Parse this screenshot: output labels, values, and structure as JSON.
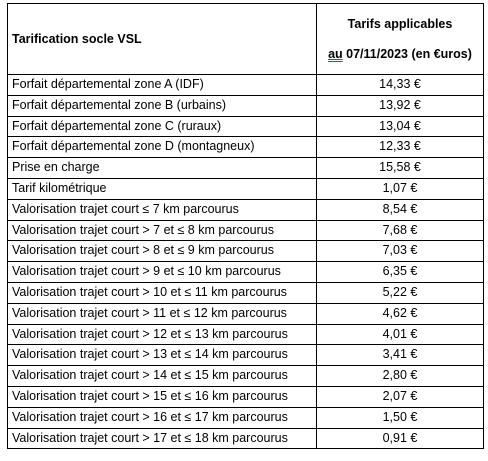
{
  "table": {
    "header": {
      "title": "Tarification socle VSL",
      "tarifs": "Tarifs applicables",
      "date_prefix": "au",
      "date": "07/11/2023 (en €uros)"
    },
    "rows": [
      [
        "Forfait départemental zone A (IDF)",
        "14,33 €"
      ],
      [
        "Forfait départemental zone B (urbains)",
        "13,92 €"
      ],
      [
        "Forfait départemental zone C (ruraux)",
        "13,04 €"
      ],
      [
        "Forfait départemental zone D (montagneux)",
        "12,33 €"
      ],
      [
        "Prise en charge",
        "15,58 €"
      ],
      [
        "Tarif kilométrique",
        "1,07 €"
      ],
      [
        "Valorisation trajet court ≤ 7 km parcourus",
        "8,54 €"
      ],
      [
        "Valorisation trajet court > 7 et ≤ 8 km parcourus",
        "7,68 €"
      ],
      [
        "Valorisation trajet court > 8 et ≤ 9 km parcourus",
        "7,03 €"
      ],
      [
        "Valorisation trajet court > 9 et ≤ 10 km parcourus",
        "6,35 €"
      ],
      [
        "Valorisation trajet court > 10 et ≤ 11 km parcourus",
        "5,22 €"
      ],
      [
        "Valorisation trajet court > 11 et ≤ 12 km parcourus",
        "4,62 €"
      ],
      [
        "Valorisation trajet court > 12 et ≤ 13 km parcourus",
        "4,01 €"
      ],
      [
        "Valorisation trajet court > 13 et ≤ 14 km parcourus",
        "3,41 €"
      ],
      [
        "Valorisation trajet court > 14 et ≤ 15 km parcourus",
        "2,80 €"
      ],
      [
        "Valorisation trajet court > 15 et ≤ 16 km parcourus",
        "2,07 €"
      ],
      [
        "Valorisation trajet court > 16 et ≤ 17 km parcourus",
        "1,50 €"
      ],
      [
        "Valorisation trajet court > 17 et ≤ 18 km parcourus",
        "0,91 €"
      ]
    ]
  }
}
